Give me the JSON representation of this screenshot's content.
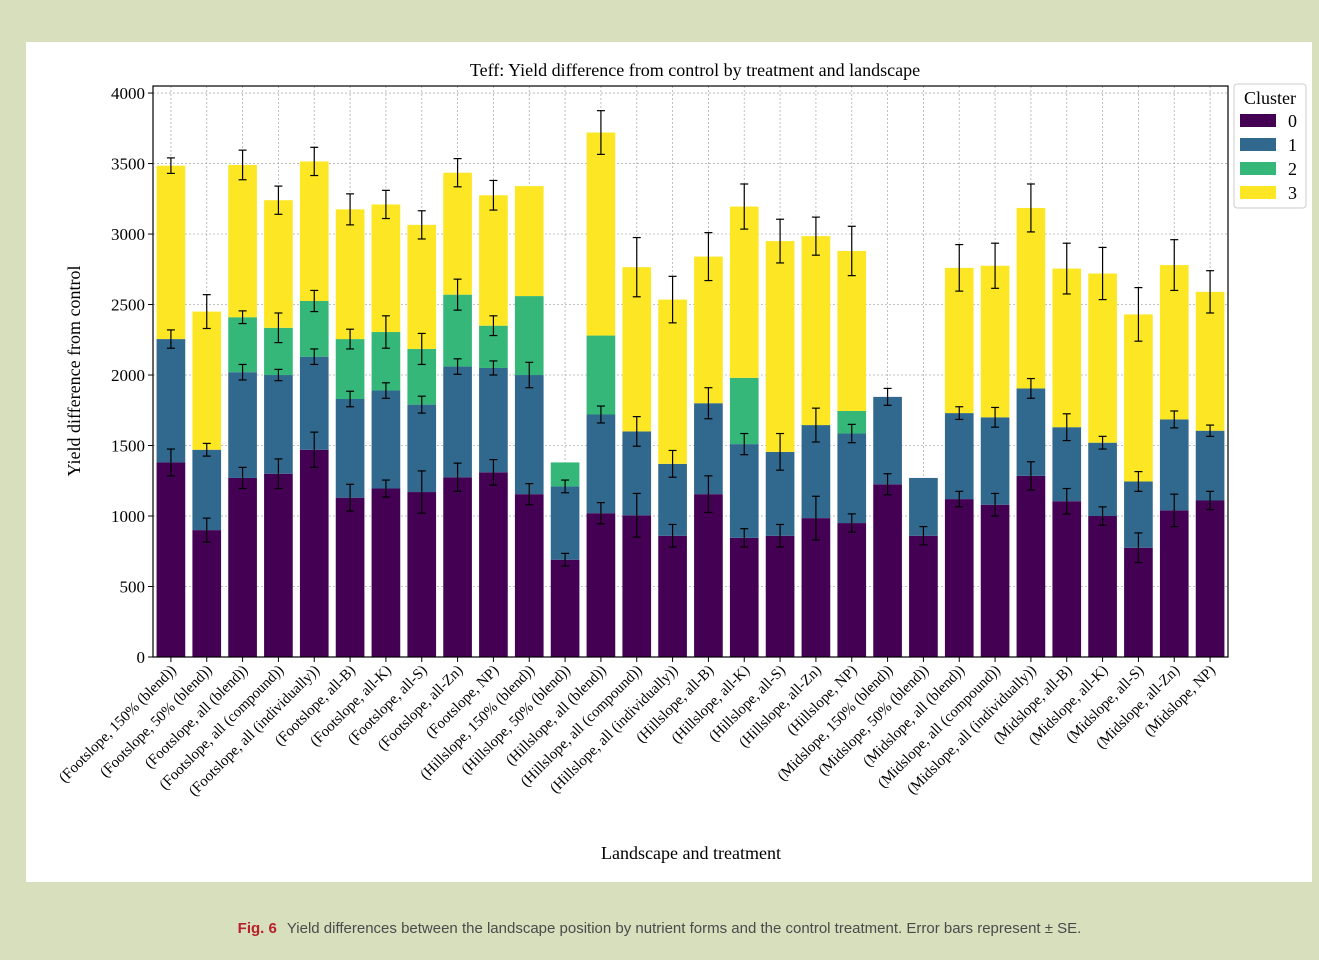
{
  "caption": {
    "label": "Fig. 6",
    "text": "Yield differences between the landscape position by nutrient forms and the control treatment. Error bars represent ± SE."
  },
  "chart_data": {
    "type": "bar",
    "stacked": true,
    "title": "Teff: Yield difference from control by treatment and landscape",
    "xlabel": "Landscape and treatment",
    "ylabel": "Yield difference from control",
    "ylim": [
      0,
      4050
    ],
    "yticks": [
      0,
      500,
      1000,
      1500,
      2000,
      2500,
      3000,
      3500,
      4000
    ],
    "grid": true,
    "legend": {
      "title": "Cluster",
      "position": "top-right-outside"
    },
    "categories": [
      "(Footslope, 150% (blend))",
      "(Footslope, 50% (blend))",
      "(Footslope, all (blend))",
      "(Footslope, all (compound))",
      "(Footslope, all (individually))",
      "(Footslope, all-B)",
      "(Footslope, all-K)",
      "(Footslope, all-S)",
      "(Footslope, all-Zn)",
      "(Footslope, NP)",
      "(Hillslope, 150% (blend))",
      "(Hillslope, 50% (blend))",
      "(Hillslope, all (blend))",
      "(Hillslope, all (compound))",
      "(Hillslope, all (individually))",
      "(Hillslope, all-B)",
      "(Hillslope, all-K)",
      "(Hillslope, all-S)",
      "(Hillslope, all-Zn)",
      "(Hillslope, NP)",
      "(Midslope, 150% (blend))",
      "(Midslope, 50% (blend))",
      "(Midslope, all (blend))",
      "(Midslope, all (compound))",
      "(Midslope, all (individually))",
      "(Midslope, all-B)",
      "(Midslope, all-K)",
      "(Midslope, all-S)",
      "(Midslope, all-Zn)",
      "(Midslope, NP)"
    ],
    "series": [
      {
        "name": "0",
        "color": "#440154",
        "values": [
          1380,
          900,
          1270,
          1300,
          1470,
          1130,
          1195,
          1170,
          1275,
          1310,
          1155,
          690,
          1020,
          1005,
          860,
          1155,
          845,
          860,
          985,
          950,
          1225,
          860,
          1120,
          1080,
          1285,
          1105,
          1000,
          775,
          1040,
          1110
        ],
        "errors": [
          95,
          85,
          75,
          105,
          125,
          95,
          60,
          150,
          100,
          90,
          75,
          45,
          75,
          155,
          80,
          130,
          65,
          80,
          155,
          65,
          75,
          65,
          55,
          80,
          100,
          90,
          65,
          105,
          115,
          65
        ]
      },
      {
        "name": "1",
        "color": "#31688e",
        "values": [
          875,
          570,
          750,
          700,
          660,
          700,
          695,
          620,
          785,
          740,
          845,
          520,
          700,
          595,
          510,
          645,
          665,
          595,
          660,
          635,
          620,
          410,
          610,
          620,
          620,
          525,
          520,
          470,
          645,
          495
        ],
        "errors": [
          65,
          45,
          55,
          40,
          55,
          55,
          55,
          60,
          55,
          50,
          90,
          45,
          60,
          105,
          95,
          110,
          75,
          130,
          120,
          65,
          60,
          0,
          45,
          70,
          70,
          95,
          45,
          70,
          60,
          40
        ]
      },
      {
        "name": "2",
        "color": "#35b779",
        "values": [
          0,
          0,
          390,
          335,
          395,
          425,
          415,
          395,
          510,
          300,
          560,
          170,
          560,
          0,
          0,
          0,
          470,
          0,
          0,
          160,
          0,
          0,
          0,
          0,
          0,
          0,
          0,
          0,
          0,
          0
        ],
        "errors": [
          0,
          0,
          45,
          105,
          75,
          70,
          115,
          110,
          110,
          70,
          0,
          0,
          0,
          0,
          0,
          0,
          0,
          0,
          0,
          0,
          0,
          0,
          0,
          0,
          0,
          0,
          0,
          0,
          0,
          0
        ]
      },
      {
        "name": "3",
        "color": "#fde725",
        "values": [
          1230,
          980,
          1080,
          905,
          990,
          920,
          905,
          880,
          865,
          925,
          780,
          0,
          1440,
          1165,
          1165,
          1040,
          1215,
          1495,
          1340,
          1135,
          0,
          0,
          1030,
          1075,
          1280,
          1125,
          1200,
          1185,
          1095,
          985
        ],
        "errors": [
          55,
          120,
          105,
          100,
          100,
          110,
          100,
          100,
          100,
          105,
          0,
          0,
          155,
          210,
          165,
          170,
          160,
          155,
          135,
          175,
          0,
          0,
          165,
          160,
          170,
          180,
          185,
          190,
          180,
          150
        ]
      }
    ]
  }
}
